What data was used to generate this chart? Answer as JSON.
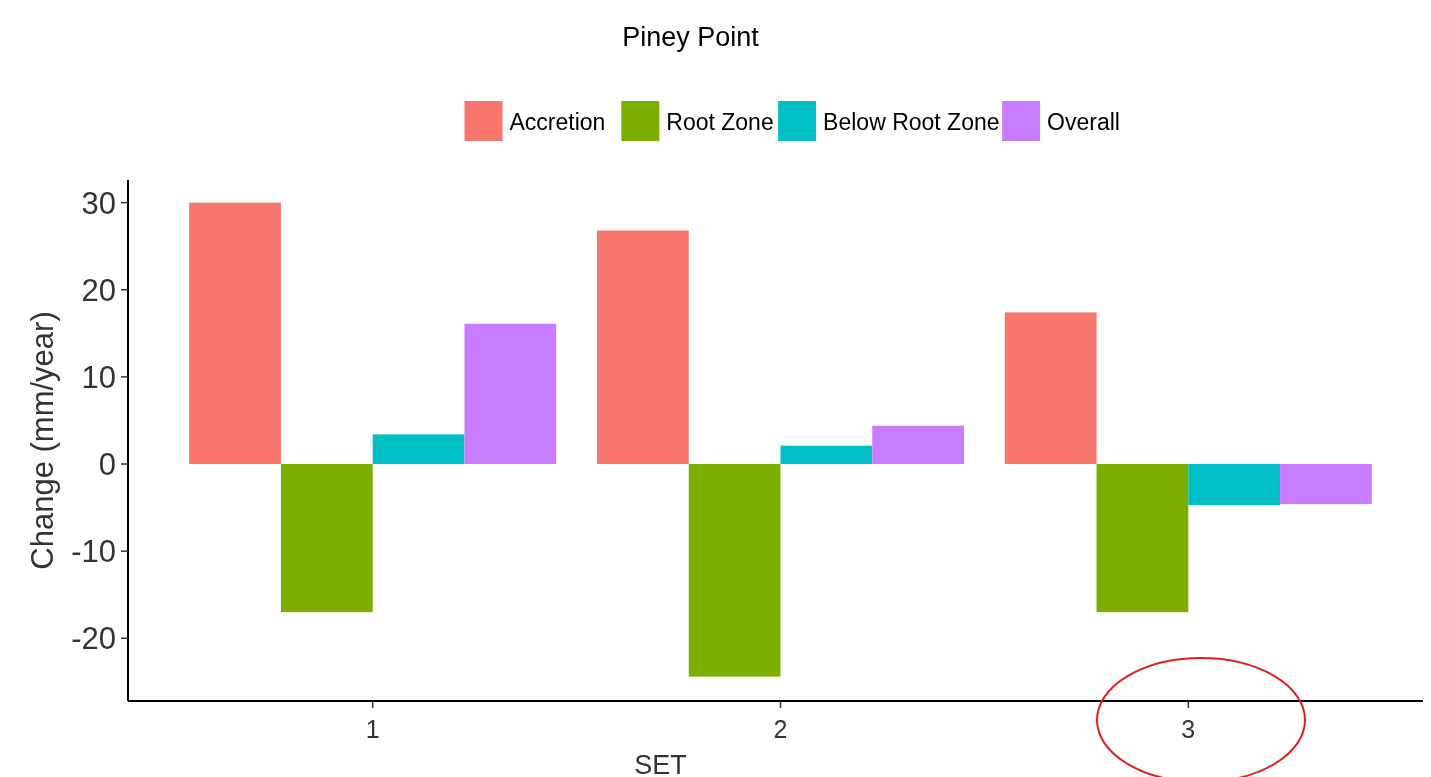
{
  "chart_data": {
    "type": "bar",
    "title": "Piney Point",
    "xlabel": "SET",
    "ylabel": "Change (mm/year)",
    "categories": [
      "1",
      "2",
      "3"
    ],
    "series": [
      {
        "name": "Accretion",
        "color": "#f8766d",
        "values": [
          30.0,
          26.8,
          17.4
        ]
      },
      {
        "name": "Root Zone",
        "color": "#7cae00",
        "values": [
          -17.0,
          -24.4,
          -17.0
        ]
      },
      {
        "name": "Below Root Zone",
        "color": "#00bfc4",
        "values": [
          3.4,
          2.1,
          -4.7
        ]
      },
      {
        "name": "Overall",
        "color": "#c77cff",
        "values": [
          16.1,
          4.4,
          -4.6
        ]
      }
    ],
    "ylim": [
      -27.2,
      32.6
    ],
    "yticks": [
      -20,
      -10,
      0,
      10,
      20,
      30
    ],
    "grid": false,
    "legend": "top"
  }
}
